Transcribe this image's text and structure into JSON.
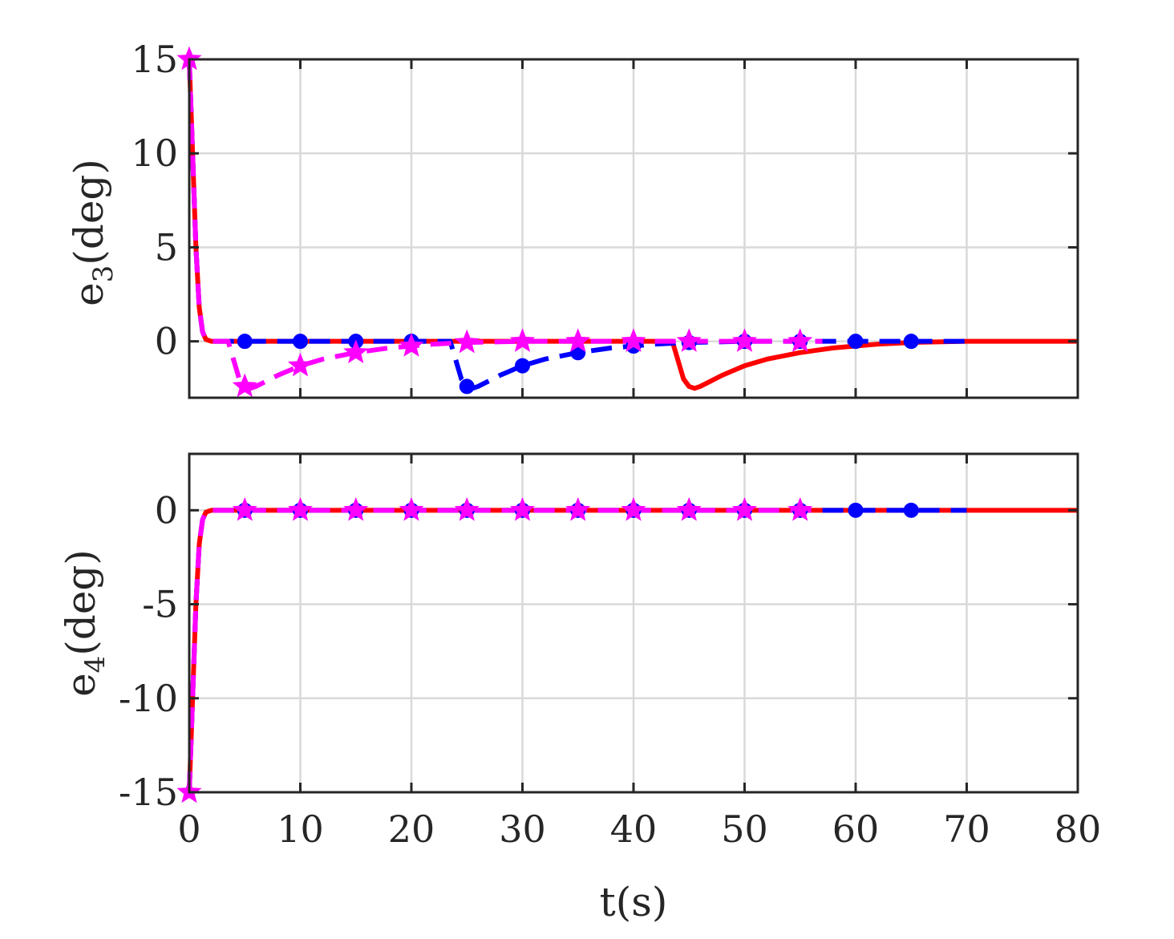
{
  "chart_data": [
    {
      "type": "line",
      "panel": "top",
      "ylabel_main": "e",
      "ylabel_sub": "3",
      "ylabel_unit": "(deg)",
      "xlim": [
        0,
        80
      ],
      "ylim": [
        -3,
        15
      ],
      "xticks": [
        0,
        10,
        20,
        30,
        40,
        50,
        60,
        70,
        80
      ],
      "yticks": [
        0,
        5,
        10,
        15
      ],
      "ytick_labels": [
        "0",
        "5",
        "10",
        "15"
      ],
      "xtick_labels_visible": false,
      "grid": true,
      "series": [
        {
          "color": "#ff0000",
          "style": "solid",
          "marker": "none",
          "x": [
            0,
            0.3,
            0.6,
            0.9,
            1.2,
            1.5,
            2,
            3,
            43.5,
            44,
            44.5,
            45,
            45.5,
            46,
            47,
            48,
            50,
            52,
            55,
            58,
            60,
            62,
            65,
            70,
            80
          ],
          "y": [
            15,
            10,
            5,
            1.8,
            0.5,
            0.1,
            0,
            0,
            0,
            -1.0,
            -2.0,
            -2.4,
            -2.5,
            -2.4,
            -2.1,
            -1.8,
            -1.3,
            -0.95,
            -0.6,
            -0.35,
            -0.25,
            -0.15,
            -0.06,
            0,
            0
          ]
        },
        {
          "color": "#0000ff",
          "style": "dashed",
          "marker": "circle",
          "x": [
            0,
            0.3,
            0.6,
            0.9,
            1.2,
            1.5,
            2,
            3,
            5,
            10,
            15,
            20,
            23.5,
            24,
            24.5,
            25,
            25.5,
            26,
            27,
            28,
            30,
            32,
            35,
            38,
            40,
            42,
            45,
            50,
            55,
            60,
            65,
            70
          ],
          "y": [
            15,
            10,
            5,
            1.8,
            0.5,
            0.1,
            0,
            0,
            0,
            0,
            0,
            0,
            0,
            -1.0,
            -2.0,
            -2.4,
            -2.5,
            -2.4,
            -2.1,
            -1.8,
            -1.3,
            -0.95,
            -0.6,
            -0.35,
            -0.25,
            -0.15,
            -0.06,
            0,
            0,
            0,
            0,
            0
          ],
          "marker_x": [
            5,
            10,
            15,
            20,
            25,
            30,
            35,
            40,
            45,
            50,
            55,
            60,
            65
          ],
          "marker_y": [
            0,
            0,
            0,
            0,
            -2.4,
            -1.3,
            -0.6,
            -0.25,
            -0.06,
            0,
            0,
            0,
            0
          ]
        },
        {
          "color": "#ff00ff",
          "style": "dashed",
          "marker": "star",
          "x": [
            0,
            0.3,
            0.6,
            0.9,
            1.2,
            1.5,
            2,
            3,
            3.5,
            4,
            4.5,
            5,
            5.5,
            6,
            7,
            8,
            10,
            12,
            15,
            18,
            20,
            22,
            25,
            30,
            35,
            40,
            45,
            50,
            55,
            57
          ],
          "y": [
            15,
            10,
            5,
            1.8,
            0.5,
            0.1,
            0,
            0,
            0,
            -1.0,
            -2.0,
            -2.4,
            -2.5,
            -2.4,
            -2.1,
            -1.8,
            -1.3,
            -0.95,
            -0.6,
            -0.35,
            -0.25,
            -0.15,
            -0.06,
            0,
            0,
            0,
            0,
            0,
            0,
            0
          ],
          "marker_x": [
            0,
            5,
            10,
            15,
            20,
            25,
            30,
            35,
            40,
            45,
            50,
            55
          ],
          "marker_y": [
            15,
            -2.4,
            -1.3,
            -0.6,
            -0.25,
            -0.06,
            0,
            0,
            0,
            0,
            0,
            0
          ]
        }
      ]
    },
    {
      "type": "line",
      "panel": "bottom",
      "ylabel_main": "e",
      "ylabel_sub": "4",
      "ylabel_unit": "(deg)",
      "xlabel": "t(s)",
      "xlim": [
        0,
        80
      ],
      "ylim": [
        -15,
        3
      ],
      "xticks": [
        0,
        10,
        20,
        30,
        40,
        50,
        60,
        70,
        80
      ],
      "xtick_labels": [
        "0",
        "10",
        "20",
        "30",
        "40",
        "50",
        "60",
        "70",
        "80"
      ],
      "yticks": [
        -15,
        -10,
        -5,
        0
      ],
      "ytick_labels": [
        "-15",
        "-10",
        "-5",
        "0"
      ],
      "grid": true,
      "series": [
        {
          "color": "#ff0000",
          "style": "solid",
          "marker": "none",
          "x": [
            0,
            0.3,
            0.6,
            0.9,
            1.2,
            1.5,
            2,
            3,
            80
          ],
          "y": [
            -15,
            -10,
            -5,
            -1.8,
            -0.5,
            -0.1,
            0,
            0,
            0
          ]
        },
        {
          "color": "#0000ff",
          "style": "dashed",
          "marker": "circle",
          "x": [
            0,
            0.3,
            0.6,
            0.9,
            1.2,
            1.5,
            2,
            3,
            70
          ],
          "y": [
            -15,
            -10,
            -5,
            -1.8,
            -0.5,
            -0.1,
            0,
            0,
            0
          ],
          "marker_x": [
            5,
            10,
            15,
            20,
            25,
            30,
            35,
            40,
            45,
            50,
            55,
            60,
            65
          ],
          "marker_y": [
            0,
            0,
            0,
            0,
            0,
            0,
            0,
            0,
            0,
            0,
            0,
            0,
            0
          ]
        },
        {
          "color": "#ff00ff",
          "style": "dashed",
          "marker": "star",
          "x": [
            0,
            0.3,
            0.6,
            0.9,
            1.2,
            1.5,
            2,
            3,
            57
          ],
          "y": [
            -15,
            -10,
            -5,
            -1.8,
            -0.5,
            -0.1,
            0,
            0,
            0
          ],
          "marker_x": [
            0,
            5,
            10,
            15,
            20,
            25,
            30,
            35,
            40,
            45,
            50,
            55
          ],
          "marker_y": [
            -15,
            0,
            0,
            0,
            0,
            0,
            0,
            0,
            0,
            0,
            0,
            0
          ]
        }
      ]
    }
  ]
}
